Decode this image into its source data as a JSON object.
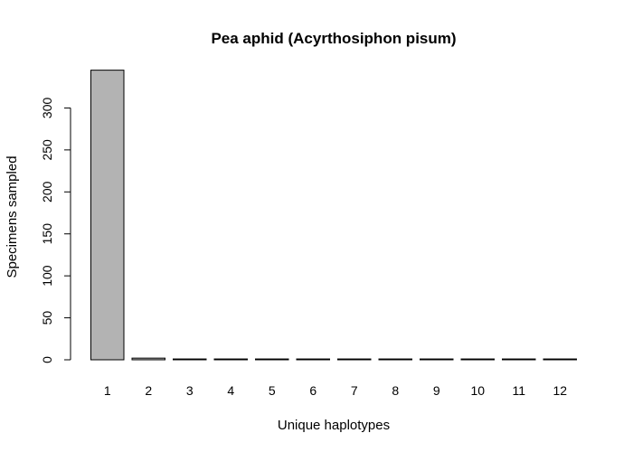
{
  "chart_data": {
    "type": "bar",
    "title": "Pea aphid (Acyrthosiphon pisum)",
    "xlabel": "Unique haplotypes",
    "ylabel": "Specimens sampled",
    "categories": [
      "1",
      "2",
      "3",
      "4",
      "5",
      "6",
      "7",
      "8",
      "9",
      "10",
      "11",
      "12"
    ],
    "values": [
      345,
      2,
      1,
      1,
      1,
      1,
      1,
      1,
      1,
      1,
      1,
      1
    ],
    "yticks": [
      0,
      50,
      100,
      150,
      200,
      250,
      300
    ],
    "ylim": [
      0,
      345
    ],
    "bar_color": "#b3b3b3",
    "grid": false,
    "legend": "none"
  }
}
